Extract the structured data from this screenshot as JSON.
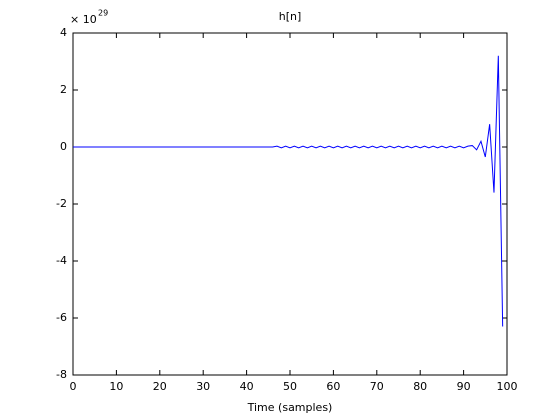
{
  "chart_data": {
    "type": "line",
    "title": "h[n]",
    "x_label": "Time (samples)",
    "y_multiplier": {
      "base": "× 10",
      "exponent": 29
    },
    "x": [
      0,
      1,
      2,
      3,
      4,
      5,
      6,
      7,
      8,
      9,
      10,
      11,
      12,
      13,
      14,
      15,
      16,
      17,
      18,
      19,
      20,
      21,
      22,
      23,
      24,
      25,
      26,
      27,
      28,
      29,
      30,
      31,
      32,
      33,
      34,
      35,
      36,
      37,
      38,
      39,
      40,
      41,
      42,
      43,
      44,
      45,
      46,
      47,
      48,
      49,
      50,
      51,
      52,
      53,
      54,
      55,
      56,
      57,
      58,
      59,
      60,
      61,
      62,
      63,
      64,
      65,
      66,
      67,
      68,
      69,
      70,
      71,
      72,
      73,
      74,
      75,
      76,
      77,
      78,
      79,
      80,
      81,
      82,
      83,
      84,
      85,
      86,
      87,
      88,
      89,
      90,
      91,
      92,
      93,
      94,
      95,
      96,
      97,
      98,
      99
    ],
    "series": [
      {
        "color": "#0000ff",
        "values": [
          0,
          0,
          0,
          0,
          0,
          0,
          0,
          0,
          0,
          0,
          0,
          0,
          0,
          0,
          0,
          0,
          0,
          0,
          0,
          0,
          0,
          0,
          0,
          0,
          0,
          0,
          0,
          0,
          0,
          0,
          0,
          0,
          0,
          0,
          0,
          0,
          0,
          0,
          0,
          0,
          0,
          0,
          0,
          0,
          0,
          0,
          0,
          0.03,
          -0.03,
          0.03,
          -0.03,
          0.03,
          -0.03,
          0.03,
          -0.03,
          0.03,
          -0.03,
          0.03,
          -0.03,
          0.03,
          -0.03,
          0.03,
          -0.03,
          0.03,
          -0.03,
          0.03,
          -0.03,
          0.03,
          -0.03,
          0.03,
          -0.03,
          0.03,
          -0.03,
          0.03,
          -0.03,
          0.03,
          -0.03,
          0.03,
          -0.03,
          0.03,
          -0.03,
          0.03,
          -0.03,
          0.03,
          -0.03,
          0.03,
          -0.03,
          0.03,
          -0.03,
          0.03,
          -0.03,
          0.03,
          0.05,
          -0.1,
          0.2,
          -0.35,
          0.8,
          -1.6,
          3.2,
          -6.3
        ]
      }
    ],
    "xlim": [
      0,
      100
    ],
    "xticks": [
      0,
      10,
      20,
      30,
      40,
      50,
      60,
      70,
      80,
      90,
      100
    ],
    "ylim": [
      -8,
      4
    ],
    "yticks": [
      -8,
      -6,
      -4,
      -2,
      0,
      2,
      4
    ]
  }
}
